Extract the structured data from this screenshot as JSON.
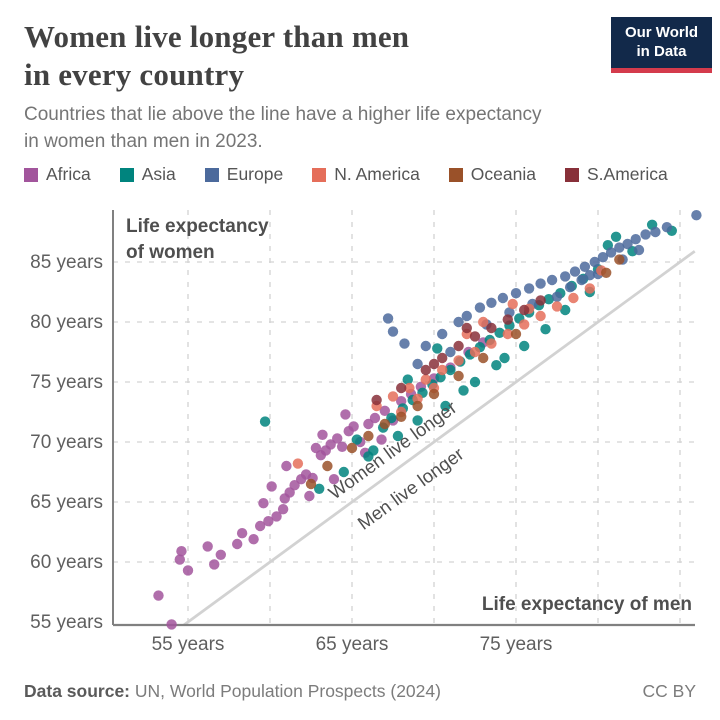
{
  "header": {
    "title_line1": "Women live longer than men",
    "title_line2": "in every country",
    "subtitle_line1": "Countries that lie above the line have a higher life expectancy",
    "subtitle_line2": "in women than men in 2023.",
    "logo": {
      "line1": "Our World",
      "line2": "in Data",
      "bg_color": "#12294a",
      "accent_color": "#d43b4c"
    }
  },
  "legend": {
    "items": [
      {
        "label": "Africa",
        "color": "#a2559c"
      },
      {
        "label": "Asia",
        "color": "#00847e"
      },
      {
        "label": "Europe",
        "color": "#4c6a9c"
      },
      {
        "label": "N. America",
        "color": "#e56e5a"
      },
      {
        "label": "Oceania",
        "color": "#9a5129"
      },
      {
        "label": "S.America",
        "color": "#883039"
      }
    ]
  },
  "chart_data": {
    "type": "scatter",
    "xlabel": "Life expectancy of men",
    "ylabel_lines": [
      "Life expectancy",
      "of women"
    ],
    "tick_suffix": " years",
    "xticks": [
      55,
      65,
      75
    ],
    "yticks": [
      55,
      60,
      65,
      70,
      75,
      80,
      85
    ],
    "xgrid": [
      55,
      60,
      65,
      70,
      75,
      80,
      85
    ],
    "ygrid": [
      60,
      65,
      70,
      75,
      80,
      85
    ],
    "xlim": [
      50.4,
      87.2
    ],
    "ylim": [
      54.7,
      89.3
    ],
    "identity_line": true,
    "grid": true,
    "colors": {
      "axis": "#808080",
      "grid": "#d3d3d3",
      "line": "#d2d2d2",
      "tick_text": "#5f5f5f",
      "label_text": "#4f4f4f"
    },
    "annotations": [
      {
        "text": "Women live longer",
        "x": 67.7,
        "y": 68.9,
        "rotate": -36
      },
      {
        "text": "Men live longer",
        "x": 68.8,
        "y": 65.7,
        "rotate": -36
      }
    ],
    "series": [
      {
        "name": "Africa",
        "color": "#a2559c",
        "points": [
          [
            54.0,
            54.8
          ],
          [
            53.2,
            57.2
          ],
          [
            55.0,
            59.3
          ],
          [
            54.5,
            60.2
          ],
          [
            54.6,
            60.9
          ],
          [
            56.2,
            61.3
          ],
          [
            57.0,
            60.6
          ],
          [
            58.3,
            62.4
          ],
          [
            59.0,
            61.9
          ],
          [
            59.4,
            63.0
          ],
          [
            59.9,
            63.4
          ],
          [
            60.4,
            63.8
          ],
          [
            60.8,
            64.4
          ],
          [
            59.6,
            64.9
          ],
          [
            60.1,
            66.3
          ],
          [
            60.9,
            65.3
          ],
          [
            61.2,
            65.8
          ],
          [
            61.5,
            66.4
          ],
          [
            61.9,
            66.9
          ],
          [
            62.2,
            67.3
          ],
          [
            62.6,
            67.0
          ],
          [
            62.4,
            65.5
          ],
          [
            63.9,
            66.9
          ],
          [
            63.1,
            68.9
          ],
          [
            63.4,
            69.3
          ],
          [
            63.7,
            69.8
          ],
          [
            64.1,
            70.3
          ],
          [
            64.4,
            69.6
          ],
          [
            64.8,
            70.9
          ],
          [
            65.1,
            71.3
          ],
          [
            63.2,
            70.6
          ],
          [
            62.8,
            69.5
          ],
          [
            65.5,
            70.0
          ],
          [
            66.0,
            71.5
          ],
          [
            66.4,
            72.0
          ],
          [
            67.0,
            72.6
          ],
          [
            67.5,
            71.8
          ],
          [
            68.0,
            73.4
          ],
          [
            68.6,
            74.0
          ],
          [
            69.2,
            74.6
          ],
          [
            70.0,
            75.3
          ],
          [
            71.0,
            76.2
          ],
          [
            72.1,
            77.5
          ],
          [
            73.0,
            78.3
          ],
          [
            65.8,
            69.1
          ],
          [
            66.8,
            70.2
          ],
          [
            61.0,
            68.0
          ],
          [
            64.6,
            72.3
          ],
          [
            58.0,
            61.5
          ],
          [
            56.6,
            59.8
          ]
        ]
      },
      {
        "name": "Asia",
        "color": "#00847e",
        "points": [
          [
            59.7,
            71.7
          ],
          [
            63.0,
            66.1
          ],
          [
            64.5,
            67.5
          ],
          [
            66.0,
            68.8
          ],
          [
            65.3,
            70.2
          ],
          [
            66.3,
            69.3
          ],
          [
            66.9,
            71.2
          ],
          [
            67.8,
            70.5
          ],
          [
            67.4,
            72.0
          ],
          [
            68.1,
            72.8
          ],
          [
            68.7,
            73.5
          ],
          [
            69.0,
            71.8
          ],
          [
            69.3,
            74.1
          ],
          [
            69.9,
            74.8
          ],
          [
            70.4,
            75.4
          ],
          [
            70.7,
            73.0
          ],
          [
            71.0,
            76.0
          ],
          [
            71.6,
            76.7
          ],
          [
            71.8,
            74.3
          ],
          [
            72.2,
            77.3
          ],
          [
            72.5,
            75.0
          ],
          [
            72.8,
            77.9
          ],
          [
            73.4,
            78.5
          ],
          [
            73.8,
            76.4
          ],
          [
            74.0,
            79.1
          ],
          [
            74.3,
            77.0
          ],
          [
            74.6,
            79.7
          ],
          [
            75.2,
            80.3
          ],
          [
            75.5,
            78.0
          ],
          [
            75.8,
            80.8
          ],
          [
            76.4,
            81.4
          ],
          [
            76.8,
            79.4
          ],
          [
            77.0,
            81.9
          ],
          [
            77.7,
            82.4
          ],
          [
            78.0,
            81.0
          ],
          [
            78.4,
            83.0
          ],
          [
            79.1,
            83.6
          ],
          [
            79.5,
            82.5
          ],
          [
            80.0,
            84.4
          ],
          [
            80.6,
            86.4
          ],
          [
            81.1,
            87.1
          ],
          [
            82.1,
            85.9
          ],
          [
            83.3,
            88.1
          ],
          [
            68.4,
            75.2
          ],
          [
            70.2,
            77.8
          ],
          [
            84.5,
            87.6
          ]
        ]
      },
      {
        "name": "Europe",
        "color": "#4c6a9c",
        "points": [
          [
            67.2,
            80.3
          ],
          [
            67.5,
            79.2
          ],
          [
            68.2,
            78.2
          ],
          [
            69.0,
            76.5
          ],
          [
            69.5,
            78.0
          ],
          [
            70.5,
            79.0
          ],
          [
            71.0,
            77.5
          ],
          [
            71.5,
            80.0
          ],
          [
            72.0,
            80.5
          ],
          [
            72.8,
            81.2
          ],
          [
            73.2,
            79.8
          ],
          [
            73.5,
            81.6
          ],
          [
            74.2,
            82.0
          ],
          [
            74.6,
            80.8
          ],
          [
            75.0,
            82.4
          ],
          [
            75.8,
            82.8
          ],
          [
            76.0,
            81.5
          ],
          [
            76.5,
            83.2
          ],
          [
            77.2,
            83.5
          ],
          [
            77.5,
            82.1
          ],
          [
            78.0,
            83.8
          ],
          [
            78.3,
            82.9
          ],
          [
            78.6,
            84.2
          ],
          [
            79.0,
            83.5
          ],
          [
            79.2,
            84.6
          ],
          [
            79.5,
            83.9
          ],
          [
            79.8,
            85.0
          ],
          [
            80.0,
            84.0
          ],
          [
            80.3,
            85.4
          ],
          [
            80.8,
            85.8
          ],
          [
            81.3,
            86.2
          ],
          [
            81.5,
            85.2
          ],
          [
            81.8,
            86.5
          ],
          [
            82.3,
            86.9
          ],
          [
            82.5,
            86.0
          ],
          [
            82.9,
            87.3
          ],
          [
            83.5,
            87.5
          ],
          [
            84.2,
            87.9
          ],
          [
            86.0,
            88.9
          ]
        ]
      },
      {
        "name": "N. America",
        "color": "#e56e5a",
        "points": [
          [
            61.7,
            68.2
          ],
          [
            66.5,
            73.0
          ],
          [
            67.5,
            73.8
          ],
          [
            68.0,
            72.5
          ],
          [
            68.5,
            74.5
          ],
          [
            69.5,
            75.2
          ],
          [
            70.0,
            74.5
          ],
          [
            70.5,
            76.0
          ],
          [
            71.5,
            76.8
          ],
          [
            72.0,
            79.0
          ],
          [
            72.5,
            77.5
          ],
          [
            73.0,
            80.0
          ],
          [
            73.5,
            78.2
          ],
          [
            74.5,
            79.0
          ],
          [
            74.8,
            81.5
          ],
          [
            75.5,
            79.8
          ],
          [
            75.8,
            81.1
          ],
          [
            76.5,
            80.5
          ],
          [
            77.5,
            81.3
          ],
          [
            78.5,
            82.0
          ],
          [
            79.5,
            82.8
          ],
          [
            80.2,
            84.3
          ],
          [
            69.0,
            73.6
          ]
        ]
      },
      {
        "name": "Oceania",
        "color": "#9a5129",
        "points": [
          [
            62.5,
            66.5
          ],
          [
            63.5,
            68.0
          ],
          [
            65.0,
            69.5
          ],
          [
            66.0,
            70.5
          ],
          [
            67.0,
            71.5
          ],
          [
            68.0,
            72.1
          ],
          [
            69.0,
            73.0
          ],
          [
            70.0,
            74.0
          ],
          [
            71.5,
            75.5
          ],
          [
            73.0,
            77.0
          ],
          [
            75.0,
            79.0
          ],
          [
            80.5,
            84.1
          ],
          [
            81.3,
            85.2
          ]
        ]
      },
      {
        "name": "S.America",
        "color": "#883039",
        "points": [
          [
            66.5,
            73.5
          ],
          [
            68.0,
            74.5
          ],
          [
            69.5,
            76.0
          ],
          [
            70.0,
            76.5
          ],
          [
            70.5,
            77.0
          ],
          [
            71.5,
            78.0
          ],
          [
            72.0,
            79.5
          ],
          [
            72.5,
            78.8
          ],
          [
            73.5,
            79.5
          ],
          [
            74.5,
            80.2
          ],
          [
            75.5,
            81.0
          ],
          [
            76.5,
            81.8
          ]
        ]
      }
    ]
  },
  "footer": {
    "source_label": "Data source:",
    "source_text": " UN, World Population Prospects (2024)",
    "license": "CC BY"
  }
}
